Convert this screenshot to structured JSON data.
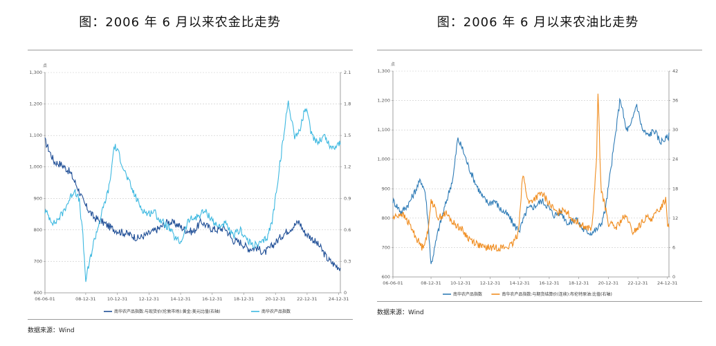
{
  "charts": [
    {
      "title": "图：2006 年 6 月以来农金比走势",
      "source": "数据来源：Wind",
      "unit_label": "点",
      "chart_data": {
        "type": "line",
        "x_ticks": [
          "06-06-01",
          "08-12-31",
          "10-12-31",
          "12-12-31",
          "14-12-31",
          "16-12-31",
          "18-12-31",
          "20-12-31",
          "22-12-31",
          "24-12-31"
        ],
        "y_left": {
          "ylim": [
            600,
            1300
          ],
          "ticks": [
            "600",
            "700",
            "800",
            "900",
            "1,000",
            "1,100",
            "1,200",
            "1,300"
          ]
        },
        "y_right": {
          "ylim": [
            0,
            2.1
          ],
          "ticks": [
            "0",
            "0.3",
            "0.6",
            "0.9",
            "1.2",
            "1.5",
            "1.8",
            "2.1"
          ]
        },
        "series": [
          {
            "name": "南华农产品指数:与现货价(伦敦市场):黄金:美元比值(右轴)",
            "axis": "right",
            "color": "#1f4e96",
            "x": [
              2006.42,
              2007.0,
              2007.5,
              2008.0,
              2008.5,
              2008.9,
              2009.5,
              2010.0,
              2010.6,
              2011.2,
              2011.7,
              2012.3,
              2012.8,
              2013.2,
              2013.7,
              2014.2,
              2014.8,
              2015.3,
              2015.8,
              2016.3,
              2016.8,
              2017.3,
              2017.8,
              2018.3,
              2018.8,
              2019.3,
              2019.8,
              2020.3,
              2020.6,
              2021.0,
              2021.5,
              2022.0,
              2022.5,
              2022.8,
              2023.3,
              2023.8,
              2024.3,
              2024.8,
              2025.1
            ],
            "values": [
              1.45,
              1.25,
              1.22,
              1.15,
              1.0,
              0.85,
              0.72,
              0.68,
              0.62,
              0.58,
              0.56,
              0.52,
              0.55,
              0.58,
              0.62,
              0.68,
              0.65,
              0.6,
              0.58,
              0.68,
              0.62,
              0.6,
              0.62,
              0.5,
              0.48,
              0.42,
              0.43,
              0.38,
              0.42,
              0.48,
              0.56,
              0.62,
              0.68,
              0.58,
              0.52,
              0.44,
              0.32,
              0.26,
              0.24
            ]
          },
          {
            "name": "南华农产品指数",
            "axis": "left",
            "color": "#3cb8e0",
            "x": [
              2006.42,
              2007.0,
              2007.5,
              2008.0,
              2008.3,
              2008.6,
              2008.8,
              2009.0,
              2009.5,
              2010.0,
              2010.5,
              2010.8,
              2011.1,
              2011.5,
              2012.0,
              2012.5,
              2012.9,
              2013.3,
              2013.7,
              2014.2,
              2014.7,
              2015.0,
              2015.5,
              2016.0,
              2016.5,
              2016.9,
              2017.3,
              2017.8,
              2018.3,
              2018.8,
              2019.3,
              2019.8,
              2020.2,
              2020.5,
              2020.8,
              2021.2,
              2021.6,
              2021.8,
              2022.2,
              2022.5,
              2022.9,
              2023.3,
              2023.7,
              2024.1,
              2024.5,
              2024.9,
              2025.1
            ],
            "values": [
              860,
              820,
              850,
              900,
              930,
              890,
              790,
              640,
              760,
              850,
              940,
              1070,
              1040,
              980,
              920,
              870,
              850,
              860,
              830,
              810,
              770,
              760,
              830,
              840,
              860,
              840,
              810,
              820,
              780,
              800,
              760,
              750,
              760,
              780,
              830,
              980,
              1130,
              1210,
              1100,
              1110,
              1190,
              1100,
              1080,
              1100,
              1060,
              1070,
              1080
            ]
          }
        ]
      },
      "legend": [
        {
          "label": "南华农产品指数:与现货价(伦敦市场):黄金:美元比值(右轴)",
          "color": "#1f4e96"
        },
        {
          "label": "南华农产品指数",
          "color": "#3cb8e0"
        }
      ]
    },
    {
      "title": "图：2006 年 6 月以来农油比走势",
      "source": "数据来源：Wind",
      "unit_label": "点",
      "chart_data": {
        "type": "line",
        "x_ticks": [
          "06-06-01",
          "08-12-31",
          "10-12-31",
          "12-12-31",
          "14-12-31",
          "16-12-31",
          "18-12-31",
          "20-12-31",
          "22-12-31",
          "24-12-31"
        ],
        "y_left": {
          "ylim": [
            600,
            1300
          ],
          "ticks": [
            "600",
            "700",
            "800",
            "900",
            "1,000",
            "1,100",
            "1,200",
            "1,300"
          ]
        },
        "y_right": {
          "ylim": [
            0,
            42
          ],
          "ticks": [
            "0",
            "6",
            "12",
            "18",
            "24",
            "30",
            "36",
            "42"
          ]
        },
        "series": [
          {
            "name": "南华农产品指数",
            "axis": "left",
            "color": "#2e7bb6",
            "x": [
              2006.42,
              2007.0,
              2007.5,
              2008.0,
              2008.3,
              2008.6,
              2008.8,
              2009.0,
              2009.5,
              2010.0,
              2010.5,
              2010.8,
              2011.1,
              2011.5,
              2012.0,
              2012.5,
              2012.9,
              2013.3,
              2013.7,
              2014.2,
              2014.7,
              2015.0,
              2015.5,
              2016.0,
              2016.5,
              2016.9,
              2017.3,
              2017.8,
              2018.3,
              2018.8,
              2019.3,
              2019.8,
              2020.2,
              2020.5,
              2020.8,
              2021.2,
              2021.6,
              2021.8,
              2022.2,
              2022.5,
              2022.9,
              2023.3,
              2023.7,
              2024.1,
              2024.5,
              2024.9,
              2025.1
            ],
            "values": [
              860,
              820,
              850,
              900,
              930,
              890,
              790,
              640,
              760,
              850,
              940,
              1070,
              1040,
              980,
              920,
              870,
              850,
              860,
              830,
              810,
              770,
              760,
              830,
              840,
              860,
              840,
              810,
              820,
              780,
              800,
              760,
              750,
              760,
              780,
              830,
              980,
              1130,
              1210,
              1100,
              1110,
              1190,
              1100,
              1080,
              1100,
              1060,
              1070,
              1080
            ]
          },
          {
            "name": "南华农产品指数:与期货结算价(连续):布伦特原油:比值(右轴)",
            "axis": "right",
            "color": "#f08c1e",
            "x": [
              2006.42,
              2007.0,
              2007.5,
              2008.0,
              2008.4,
              2008.8,
              2009.0,
              2009.5,
              2010.0,
              2010.5,
              2011.0,
              2011.5,
              2012.0,
              2012.5,
              2013.0,
              2013.5,
              2014.0,
              2014.5,
              2014.9,
              2015.2,
              2015.6,
              2016.0,
              2016.5,
              2017.0,
              2017.5,
              2018.0,
              2018.5,
              2019.0,
              2019.5,
              2019.9,
              2020.2,
              2020.3,
              2020.5,
              2020.8,
              2021.0,
              2021.5,
              2022.0,
              2022.3,
              2022.6,
              2023.0,
              2023.5,
              2024.0,
              2024.5,
              2024.9,
              2025.0,
              2025.1
            ],
            "values": [
              12,
              13,
              11,
              8,
              6,
              9,
              16,
              12,
              13,
              11,
              10,
              8,
              7,
              6,
              6,
              6,
              6,
              6.5,
              9,
              21,
              15,
              16,
              17,
              15,
              13,
              14,
              12,
              11,
              10,
              10,
              24,
              38,
              18,
              14,
              11,
              10,
              12,
              12,
              9,
              10,
              12,
              12,
              14,
              16,
              11,
              10
            ]
          }
        ]
      },
      "legend": [
        {
          "label": "南华农产品指数",
          "color": "#2e7bb6"
        },
        {
          "label": "南华农产品指数:与期货结算价(连续):布伦特原油:比值(右轴)",
          "color": "#f08c1e"
        }
      ]
    }
  ]
}
